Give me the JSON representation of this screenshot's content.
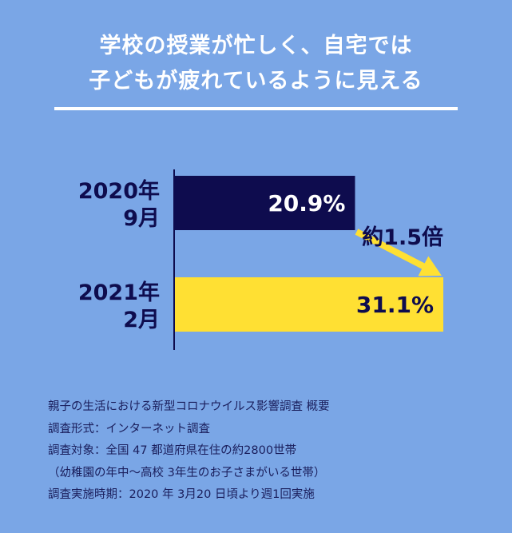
{
  "title": {
    "line1": "学校の授業が忙しく、自宅では",
    "line2": "子どもが疲れているように見える"
  },
  "chart_data": {
    "type": "bar",
    "orientation": "horizontal",
    "categories": [
      {
        "line1": "2020年",
        "line2": "9月"
      },
      {
        "line1": "2021年",
        "line2": "2月"
      }
    ],
    "values": [
      20.9,
      31.1
    ],
    "value_labels": [
      "20.9%",
      "31.1%"
    ],
    "annotation": "約1.5倍",
    "xlim": [
      0,
      31.1
    ],
    "bar_colors": [
      "#0e0c4e",
      "#ffe033"
    ],
    "label_colors": [
      "#ffffff",
      "#0e0c4e"
    ],
    "arrow_color": "#ffe033"
  },
  "notes": [
    "親子の生活における新型コロナウイルス影響調査 概要",
    "調査形式：インターネット調査",
    "調査対象：全国 47 都道府県在住の約2800世帯",
    "（幼稚園の年中〜高校 3年生のお子さまがいる世帯）",
    "調査実施時期：2020 年 3月20 日頃より週1回実施"
  ],
  "colors": {
    "background": "#7aa6e6",
    "text_dark": "#0e0c4e",
    "title_text": "#ffffff"
  }
}
